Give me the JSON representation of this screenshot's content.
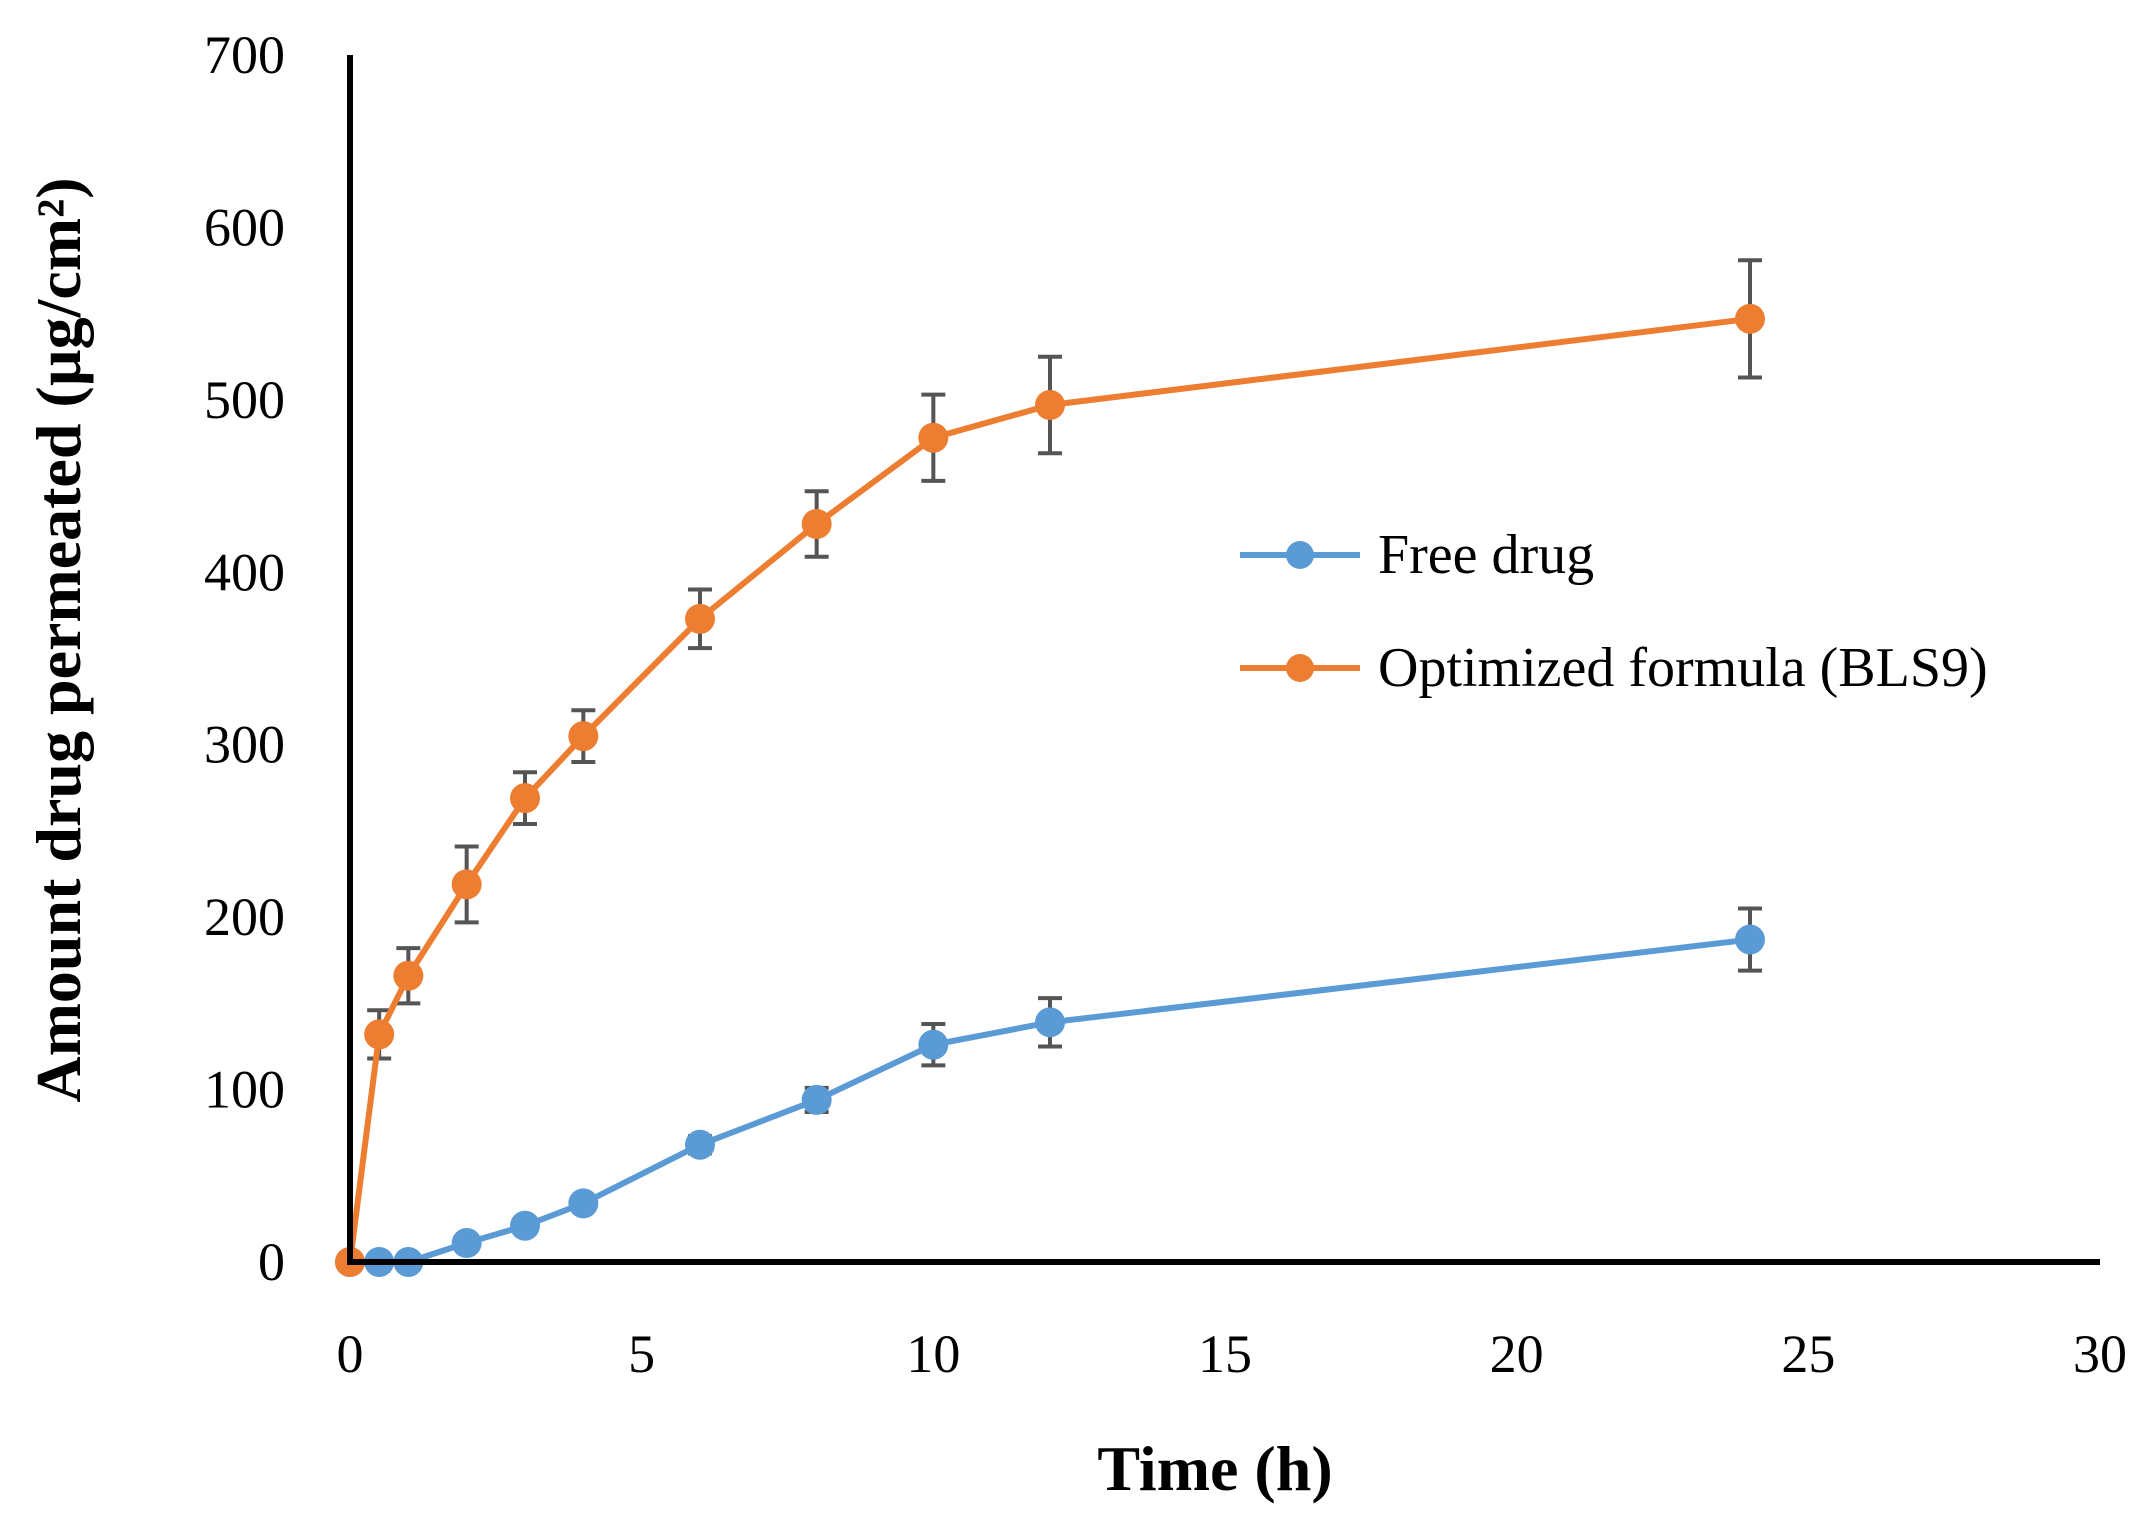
{
  "chart_data": {
    "type": "line",
    "title": "",
    "xlabel": "Time (h)",
    "ylabel": "Amount drug permeated (µg/cm²)",
    "xlim": [
      0,
      30
    ],
    "ylim": [
      0,
      700
    ],
    "x_ticks": [
      0,
      5,
      10,
      15,
      20,
      25,
      30
    ],
    "y_ticks": [
      0,
      100,
      200,
      300,
      400,
      500,
      600,
      700
    ],
    "grid": false,
    "legend_position": "center-right",
    "series": [
      {
        "name": "Free drug",
        "color": "#5B9BD5",
        "x": [
          0,
          0.5,
          1,
          2,
          3,
          4,
          6,
          8,
          10,
          12,
          24
        ],
        "values": [
          0,
          0,
          0,
          11,
          21,
          34,
          68,
          94,
          126,
          139,
          187
        ],
        "error": [
          0,
          0,
          0,
          4,
          4,
          4,
          5,
          7,
          12,
          14,
          18
        ]
      },
      {
        "name": "Optimized formula (BLS9)",
        "color": "#ED7D31",
        "x": [
          0,
          0.5,
          1,
          2,
          3,
          4,
          6,
          8,
          10,
          12,
          24
        ],
        "values": [
          0,
          132,
          166,
          219,
          269,
          305,
          373,
          428,
          478,
          497,
          547
        ],
        "error": [
          0,
          14,
          16,
          22,
          15,
          15,
          17,
          19,
          25,
          28,
          34
        ]
      }
    ]
  }
}
